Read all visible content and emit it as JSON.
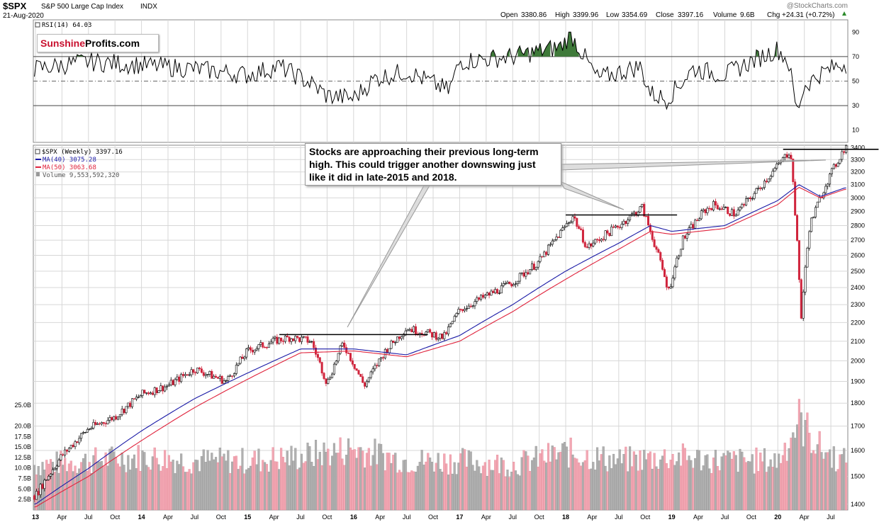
{
  "header": {
    "symbol": "$SPX",
    "name": "S&P 500 Large Cap Index",
    "exchange": "INDX",
    "date": "21-Aug-2020",
    "watermark": "@StockCharts.com",
    "open_label": "Open",
    "open": "3380.86",
    "high_label": "High",
    "high": "3399.96",
    "low_label": "Low",
    "low": "3354.69",
    "close_label": "Close",
    "close": "3397.16",
    "volume_label": "Volume",
    "volume": "9.6B",
    "chg_label": "Chg",
    "chg": "+24.31 (+0.72%)"
  },
  "logo": {
    "part1": "Sunshine",
    "part2": "Profits.com"
  },
  "annotation": {
    "lines": [
      "Stocks are approaching their previous long-term",
      "high. This could trigger another downswing just",
      "like it did in late-2015 and 2018."
    ]
  },
  "colors": {
    "price_up": "#000000",
    "price_down": "#d0243c",
    "ma40": "#1a1aa6",
    "ma50": "#e0233c",
    "rsi_line": "#000000",
    "rsi_overbought_fill": "#3f7a3a",
    "volume_up": "#b0b0b0",
    "volume_down": "#f2a8b4",
    "grid": "#d7d7d7"
  },
  "chart_data": [
    {
      "type": "line",
      "panel": "rsi",
      "legend": "RSI(14) 64.03",
      "y_ticks": [
        "10",
        "30",
        "50",
        "70",
        "90"
      ],
      "ylim": [
        0,
        100
      ],
      "reference_levels": [
        30,
        50,
        70
      ],
      "x": [
        2013.0,
        2013.5,
        2014.0,
        2014.5,
        2015.0,
        2015.3,
        2015.6,
        2015.75,
        2016.0,
        2016.2,
        2016.5,
        2016.9,
        2017.0,
        2017.5,
        2017.95,
        2018.05,
        2018.3,
        2018.7,
        2018.8,
        2018.95,
        2019.2,
        2019.5,
        2019.75,
        2020.0,
        2020.1,
        2020.18,
        2020.25,
        2020.4,
        2020.6
      ],
      "values": [
        60,
        66,
        63,
        60,
        55,
        62,
        48,
        38,
        36,
        52,
        58,
        42,
        66,
        70,
        78,
        88,
        52,
        62,
        40,
        35,
        60,
        55,
        66,
        76,
        66,
        25,
        46,
        56,
        64
      ]
    },
    {
      "type": "line",
      "panel": "price",
      "legend": [
        "$SPX (Weekly) 3397.16",
        "MA(40) 3075.28",
        "MA(50) 3063.68",
        "Volume 9,553,592,320"
      ],
      "x_ticks": [
        "13",
        "Apr",
        "Jul",
        "Oct",
        "14",
        "Apr",
        "Jul",
        "Oct",
        "15",
        "Apr",
        "Jul",
        "Oct",
        "16",
        "Apr",
        "Jul",
        "Oct",
        "17",
        "Apr",
        "Jul",
        "Oct",
        "18",
        "Apr",
        "Jul",
        "Oct",
        "19",
        "Apr",
        "Jul",
        "Oct",
        "20",
        "Apr",
        "Jul"
      ],
      "y_ticks": [
        "1400",
        "1500",
        "1600",
        "1700",
        "1800",
        "1900",
        "2000",
        "2100",
        "2200",
        "2300",
        "2400",
        "2500",
        "2600",
        "2700",
        "2800",
        "2900",
        "3000",
        "3100",
        "3200",
        "3300",
        "3400"
      ],
      "ylim": [
        1380,
        3420
      ],
      "y_scale": "log",
      "series": [
        {
          "name": "$SPX (Weekly)",
          "x": [
            2013.0,
            2013.25,
            2013.5,
            2013.75,
            2014.0,
            2014.25,
            2014.5,
            2014.8,
            2015.0,
            2015.25,
            2015.4,
            2015.6,
            2015.75,
            2015.9,
            2016.1,
            2016.3,
            2016.5,
            2016.85,
            2017.0,
            2017.25,
            2017.5,
            2017.75,
            2018.0,
            2018.07,
            2018.2,
            2018.5,
            2018.72,
            2018.85,
            2018.97,
            2019.1,
            2019.3,
            2019.4,
            2019.6,
            2019.8,
            2020.0,
            2020.12,
            2020.18,
            2020.22,
            2020.3,
            2020.45,
            2020.63
          ],
          "values": [
            1430,
            1580,
            1690,
            1740,
            1840,
            1880,
            1960,
            1900,
            2050,
            2100,
            2120,
            2100,
            1890,
            2090,
            1880,
            2050,
            2170,
            2120,
            2270,
            2350,
            2430,
            2560,
            2800,
            2870,
            2650,
            2800,
            2930,
            2650,
            2380,
            2700,
            2900,
            2950,
            2880,
            3050,
            3250,
            3380,
            2700,
            2230,
            2800,
            3100,
            3397
          ]
        },
        {
          "name": "MA(40)",
          "x": [
            2013.0,
            2013.5,
            2014.0,
            2014.5,
            2015.0,
            2015.5,
            2016.0,
            2016.5,
            2017.0,
            2017.5,
            2018.0,
            2018.5,
            2018.8,
            2019.0,
            2019.5,
            2020.0,
            2020.2,
            2020.4,
            2020.63
          ],
          "values": [
            1400,
            1530,
            1680,
            1820,
            1940,
            2060,
            2060,
            2030,
            2130,
            2300,
            2500,
            2680,
            2800,
            2760,
            2800,
            2980,
            3100,
            3010,
            3075
          ]
        },
        {
          "name": "MA(50)",
          "x": [
            2013.0,
            2013.5,
            2014.0,
            2014.5,
            2015.0,
            2015.5,
            2016.0,
            2016.5,
            2017.0,
            2017.5,
            2018.0,
            2018.5,
            2018.8,
            2019.0,
            2019.5,
            2020.0,
            2020.2,
            2020.4,
            2020.63
          ],
          "values": [
            1390,
            1500,
            1640,
            1780,
            1910,
            2040,
            2050,
            2020,
            2100,
            2260,
            2450,
            2640,
            2760,
            2740,
            2780,
            2950,
            3080,
            3000,
            3064
          ]
        }
      ],
      "resistance_levels": [
        {
          "x": [
            2015.3,
            2016.7
          ],
          "value": 2135
        },
        {
          "x": [
            2018.0,
            2019.05
          ],
          "value": 2875
        },
        {
          "x": [
            2020.05,
            2020.95
          ],
          "value": 3385
        }
      ]
    },
    {
      "type": "bar",
      "panel": "volume",
      "y_ticks": [
        "2.5B",
        "5.0B",
        "7.5B",
        "10.0B",
        "12.5B",
        "15.0B",
        "17.5B",
        "20.0B",
        "25.0B"
      ],
      "ylim": [
        0,
        27
      ],
      "x": [
        2013.0,
        2013.5,
        2014.0,
        2014.5,
        2015.0,
        2015.5,
        2016.0,
        2016.5,
        2017.0,
        2017.5,
        2018.0,
        2018.5,
        2019.0,
        2019.5,
        2020.0,
        2020.2,
        2020.4,
        2020.6
      ],
      "values": [
        11,
        12,
        13,
        12,
        12,
        13,
        15,
        12,
        12,
        11,
        14,
        12,
        13,
        12,
        12,
        22,
        15,
        12
      ]
    }
  ]
}
